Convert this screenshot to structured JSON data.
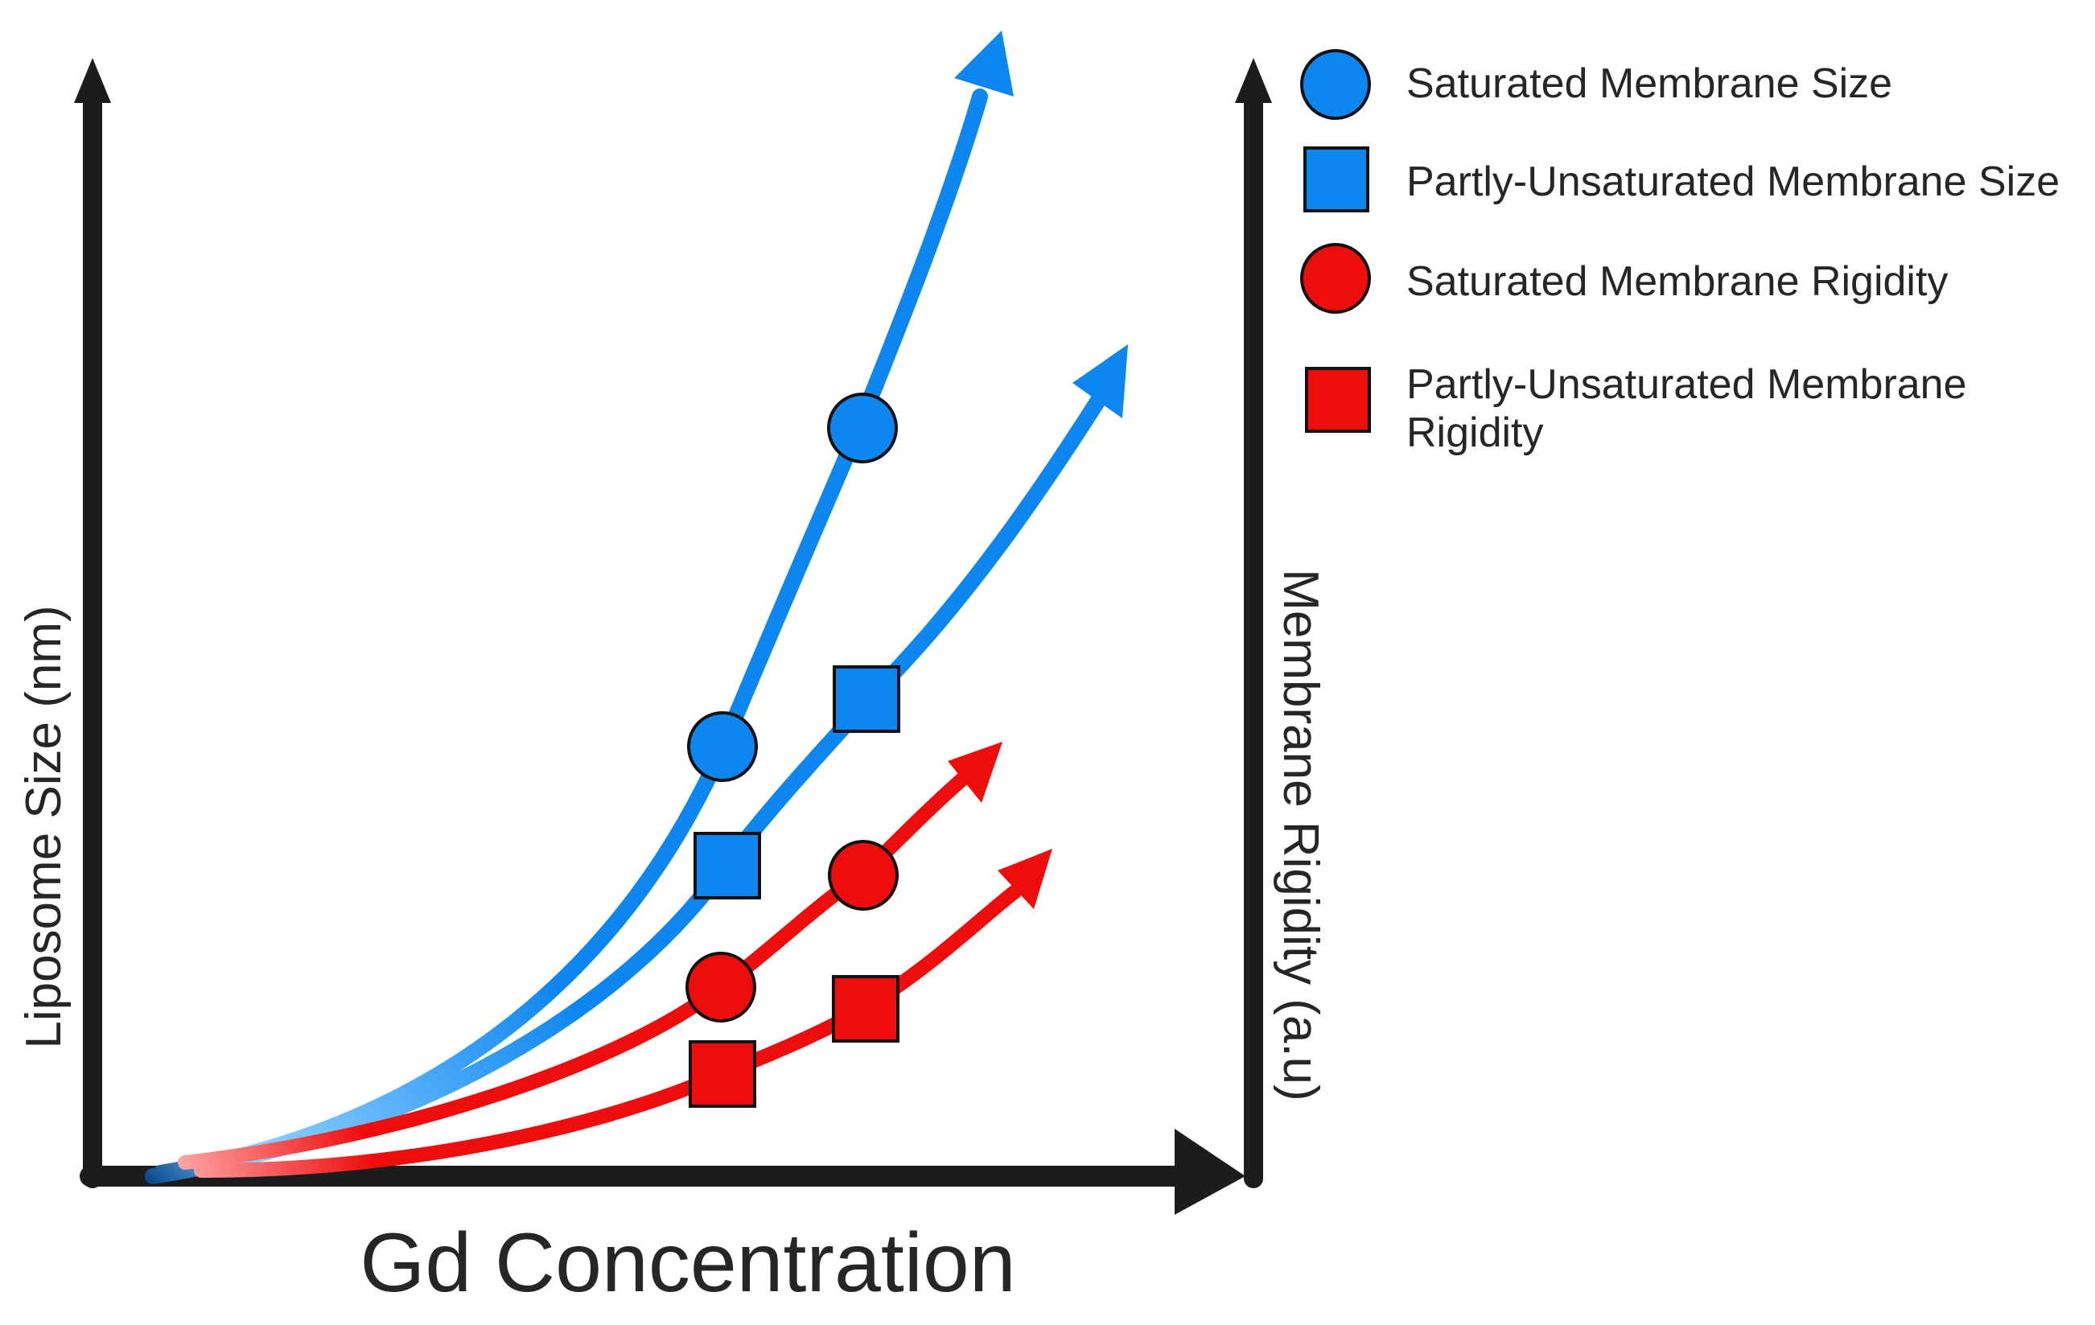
{
  "axes": {
    "x_label": "Gd Concentration",
    "y_left_label": "Liposome Size (nm)",
    "y_right_label": "Membrane Rigidity (a.u)"
  },
  "legend": {
    "items": [
      {
        "key": "saturated-size",
        "marker": "circle",
        "color": "#0d86f0",
        "lines": [
          "Saturated Membrane Size"
        ]
      },
      {
        "key": "partly-unsaturated-size",
        "marker": "square",
        "color": "#0d86f0",
        "lines": [
          "Partly-Unsaturated Membrane Size"
        ]
      },
      {
        "key": "saturated-rigidity",
        "marker": "circle",
        "color": "#ee0d0d",
        "lines": [
          "Saturated Membrane Rigidity"
        ]
      },
      {
        "key": "partly-unsaturated-rigidity",
        "marker": "square",
        "color": "#ee0d0d",
        "lines": [
          "Partly-Unsaturated Membrane",
          "Rigidity"
        ]
      }
    ]
  },
  "colors": {
    "axis": "#1c1c1c",
    "size_series": "#0d86f0",
    "size_series_light": "#8fd0ff",
    "rigidity_series": "#ee0d0d",
    "rigidity_series_light": "#ff9d9d",
    "marker_outline": "#111111",
    "text": "#262626"
  },
  "chart_data": {
    "type": "line",
    "title": "",
    "xlabel": "Gd Concentration",
    "ylabel": "Liposome Size (nm)",
    "ylabel_right": "Membrane Rigidity (a.u)",
    "qualitative": true,
    "note": "Schematic trend diagram without numeric axes; all series increase with Gd concentration.",
    "series": [
      {
        "name": "Saturated Membrane Size",
        "axis": "left",
        "trend": "increasing",
        "marker": "circle",
        "markers_count": 2
      },
      {
        "name": "Partly-Unsaturated Membrane Size",
        "axis": "left",
        "trend": "increasing",
        "marker": "square",
        "markers_count": 2
      },
      {
        "name": "Saturated Membrane Rigidity",
        "axis": "right",
        "trend": "increasing",
        "marker": "circle",
        "markers_count": 2
      },
      {
        "name": "Partly-Unsaturated Membrane Rigidity",
        "axis": "right",
        "trend": "increasing",
        "marker": "square",
        "markers_count": 2
      }
    ]
  }
}
